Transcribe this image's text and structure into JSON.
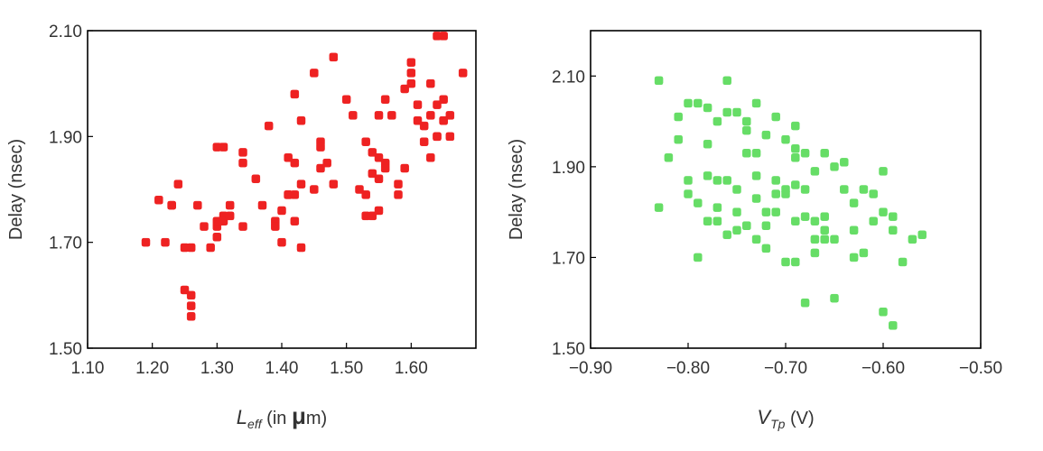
{
  "chart_data": [
    {
      "type": "scatter",
      "title": "",
      "xlabel": "L",
      "xlabel_sub": "eff",
      "xlabel_rest": " (in ",
      "xlabel_mu": "μ",
      "xlabel_tail": "m)",
      "ylabel": "Delay (nsec)",
      "xlim": [
        1.1,
        1.7
      ],
      "ylim": [
        1.5,
        2.1
      ],
      "xticks": [
        "1.10",
        "1.20",
        "1.30",
        "1.40",
        "1.50",
        "1.60"
      ],
      "yticks": [
        "1.50",
        "1.70",
        "1.90",
        "2.10"
      ],
      "grid": false,
      "marker_color": "#ee2222",
      "series": [
        {
          "x": [
            1.19,
            1.21,
            1.22,
            1.23,
            1.24,
            1.23,
            1.25,
            1.26,
            1.26,
            1.26,
            1.26,
            1.27,
            1.25,
            1.28,
            1.29,
            1.3,
            1.3,
            1.3,
            1.31,
            1.31,
            1.3,
            1.31,
            1.32,
            1.32,
            1.34,
            1.34,
            1.34,
            1.36,
            1.37,
            1.38,
            1.39,
            1.4,
            1.39,
            1.4,
            1.41,
            1.41,
            1.41,
            1.42,
            1.42,
            1.42,
            1.42,
            1.43,
            1.43,
            1.43,
            1.45,
            1.45,
            1.46,
            1.46,
            1.47,
            1.46,
            1.48,
            1.48,
            1.5,
            1.51,
            1.52,
            1.53,
            1.53,
            1.54,
            1.54,
            1.55,
            1.55,
            1.56,
            1.55,
            1.56,
            1.57,
            1.58,
            1.58,
            1.59,
            1.59,
            1.6,
            1.6,
            1.61,
            1.6,
            1.61,
            1.62,
            1.63,
            1.62,
            1.63,
            1.64,
            1.64,
            1.65,
            1.65,
            1.65,
            1.66,
            1.66,
            1.64,
            1.63,
            1.65,
            1.68,
            1.64,
            1.53,
            1.54,
            1.55,
            1.56
          ],
          "y": [
            1.7,
            1.78,
            1.7,
            1.77,
            1.81,
            1.77,
            1.61,
            1.58,
            1.6,
            1.56,
            1.69,
            1.77,
            1.69,
            1.73,
            1.69,
            1.71,
            1.73,
            1.74,
            1.75,
            1.74,
            1.88,
            1.88,
            1.75,
            1.77,
            1.73,
            1.85,
            1.87,
            1.82,
            1.77,
            1.92,
            1.74,
            1.7,
            1.73,
            1.76,
            1.79,
            1.79,
            1.86,
            1.79,
            1.85,
            1.98,
            1.74,
            1.81,
            1.69,
            1.93,
            1.8,
            2.02,
            1.89,
            1.84,
            1.85,
            1.88,
            2.05,
            1.81,
            1.97,
            1.94,
            1.8,
            1.75,
            1.89,
            1.75,
            1.87,
            1.86,
            1.76,
            1.97,
            1.94,
            1.85,
            1.94,
            1.81,
            1.79,
            1.99,
            1.84,
            2.0,
            2.02,
            1.93,
            2.04,
            1.96,
            1.92,
            1.86,
            1.89,
            1.94,
            1.9,
            1.96,
            1.97,
            2.09,
            1.93,
            1.94,
            1.9,
            2.09,
            2.0,
            1.93,
            2.02,
            1.9,
            1.79,
            1.83,
            1.82,
            1.84
          ]
        }
      ]
    },
    {
      "type": "scatter",
      "title": "",
      "xlabel": "V",
      "xlabel_sub": "Tp",
      "xlabel_rest": " (V)",
      "ylabel": "Delay (nsec)",
      "xlim": [
        -0.9,
        -0.5
      ],
      "ylim": [
        1.5,
        2.2
      ],
      "xticks": [
        "−0.90",
        "−0.80",
        "−0.70",
        "−0.60",
        "−0.50"
      ],
      "yticks": [
        "1.50",
        "1.70",
        "1.90",
        "2.10"
      ],
      "grid": false,
      "marker_color": "#66dd66",
      "series": [
        {
          "x": [
            -0.83,
            -0.83,
            -0.82,
            -0.81,
            -0.81,
            -0.8,
            -0.8,
            -0.79,
            -0.79,
            -0.78,
            -0.78,
            -0.78,
            -0.77,
            -0.77,
            -0.77,
            -0.77,
            -0.76,
            -0.76,
            -0.76,
            -0.75,
            -0.75,
            -0.75,
            -0.74,
            -0.74,
            -0.74,
            -0.74,
            -0.73,
            -0.73,
            -0.73,
            -0.73,
            -0.72,
            -0.72,
            -0.72,
            -0.72,
            -0.71,
            -0.71,
            -0.71,
            -0.7,
            -0.7,
            -0.7,
            -0.69,
            -0.69,
            -0.69,
            -0.69,
            -0.69,
            -0.68,
            -0.68,
            -0.68,
            -0.68,
            -0.67,
            -0.67,
            -0.67,
            -0.66,
            -0.66,
            -0.66,
            -0.66,
            -0.65,
            -0.65,
            -0.64,
            -0.64,
            -0.63,
            -0.63,
            -0.62,
            -0.62,
            -0.61,
            -0.61,
            -0.6,
            -0.6,
            -0.6,
            -0.59,
            -0.59,
            -0.59,
            -0.58,
            -0.57,
            -0.56,
            -0.79,
            -0.8,
            -0.76,
            -0.75,
            -0.74,
            -0.7,
            -0.67,
            -0.65,
            -0.63,
            -0.78,
            -0.73,
            -0.71,
            -0.69
          ],
          "y": [
            2.09,
            1.81,
            1.92,
            2.01,
            1.96,
            2.04,
            1.87,
            1.7,
            2.04,
            2.03,
            1.78,
            1.88,
            2.0,
            1.81,
            1.87,
            1.78,
            2.09,
            1.75,
            1.87,
            1.8,
            2.02,
            1.85,
            2.0,
            1.93,
            1.77,
            1.77,
            2.04,
            1.74,
            1.83,
            1.93,
            1.97,
            1.72,
            1.77,
            1.8,
            1.87,
            2.01,
            1.84,
            1.69,
            1.84,
            1.96,
            1.99,
            1.78,
            1.69,
            1.92,
            1.86,
            1.79,
            1.85,
            1.6,
            1.93,
            1.74,
            1.78,
            1.89,
            1.93,
            1.74,
            1.79,
            1.76,
            1.9,
            1.74,
            1.85,
            1.91,
            1.76,
            1.82,
            1.71,
            1.85,
            1.84,
            1.78,
            1.89,
            1.8,
            1.58,
            1.79,
            1.76,
            1.55,
            1.69,
            1.74,
            1.75,
            1.82,
            1.84,
            2.02,
            1.76,
            1.98,
            1.85,
            1.71,
            1.61,
            1.7,
            1.95,
            1.88,
            1.8,
            1.94
          ]
        }
      ]
    }
  ]
}
